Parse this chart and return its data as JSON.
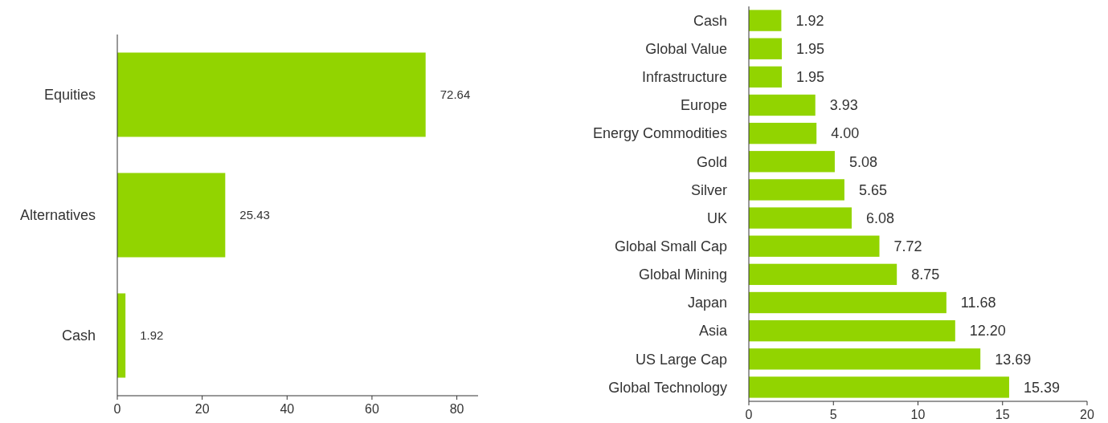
{
  "chart_data": [
    {
      "type": "bar",
      "orientation": "horizontal",
      "categories": [
        "Equities",
        "Alternatives",
        "Cash"
      ],
      "values": [
        72.64,
        25.43,
        1.92
      ],
      "color": "#92d400",
      "xlim": [
        0,
        85
      ],
      "xticks": [
        0,
        20,
        40,
        60,
        80
      ],
      "data_labels": true,
      "grid": false
    },
    {
      "type": "bar",
      "orientation": "horizontal",
      "categories": [
        "Cash",
        "Global Value",
        "Infrastructure",
        "Europe",
        "Energy Commodities",
        "Gold",
        "Silver",
        "UK",
        "Global Small Cap",
        "Global Mining",
        "Japan",
        "Asia",
        "US Large Cap",
        "Global Technology"
      ],
      "values": [
        1.92,
        1.95,
        1.95,
        3.93,
        4.0,
        5.08,
        5.65,
        6.08,
        7.72,
        8.75,
        11.68,
        12.2,
        13.69,
        15.39
      ],
      "value_labels": [
        "1.92",
        "1.95",
        "1.95",
        "3.93",
        "4.00",
        "5.08",
        "5.65",
        "6.08",
        "7.72",
        "8.75",
        "11.68",
        "12.20",
        "13.69",
        "15.39"
      ],
      "color": "#92d400",
      "xlim": [
        0,
        20
      ],
      "xticks": [
        0,
        5,
        10,
        15,
        20
      ],
      "grid": false
    }
  ]
}
